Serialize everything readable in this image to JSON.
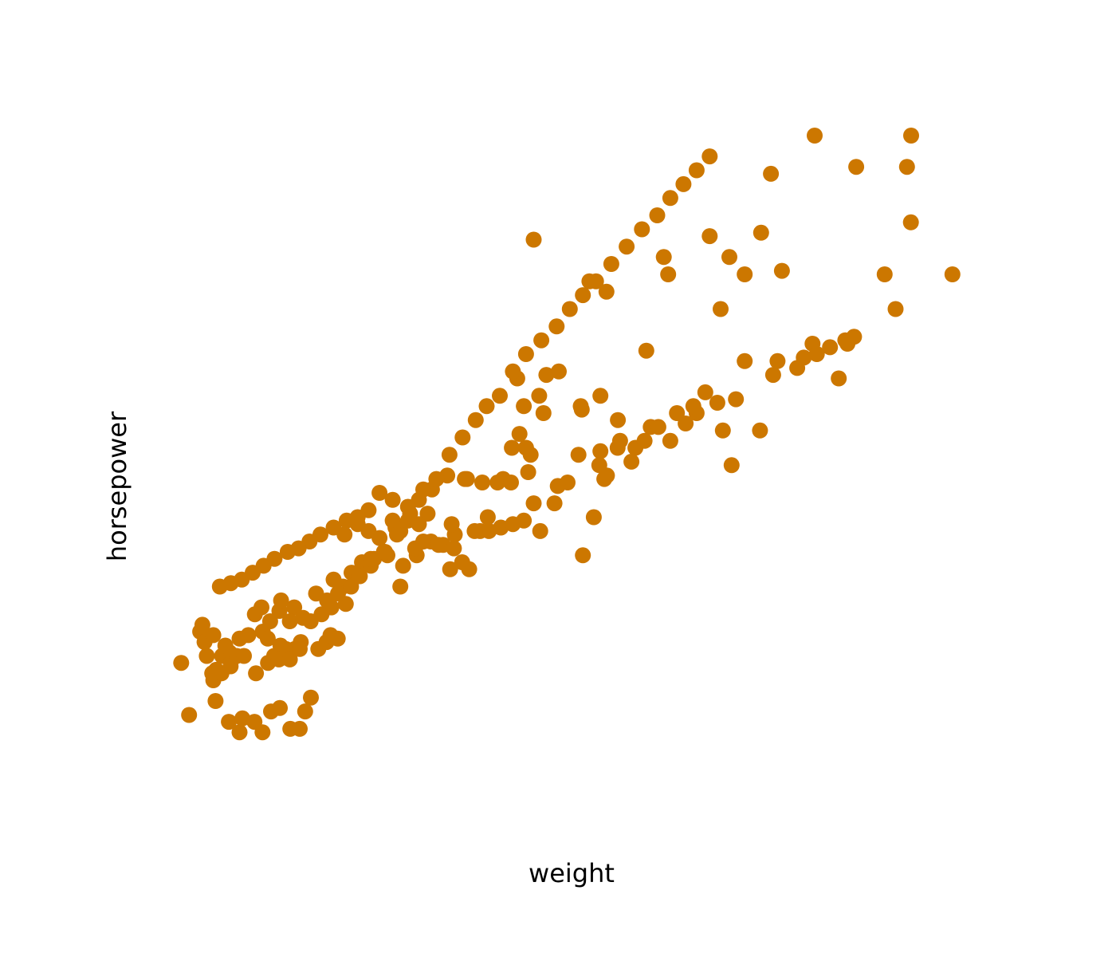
{
  "chart_data": {
    "type": "scatter",
    "title": "",
    "xlabel": "weight",
    "ylabel": "horsepower",
    "xlim": [
      1550,
      5250
    ],
    "ylim": [
      40,
      240
    ],
    "grid": false,
    "marker_color": "#cc7700",
    "points": [
      [
        1613,
        88
      ],
      [
        1649,
        73
      ],
      [
        1755,
        85
      ],
      [
        1760,
        83
      ],
      [
        1797,
        85
      ],
      [
        1773,
        86
      ],
      [
        1834,
        91
      ],
      [
        1800,
        90
      ],
      [
        1845,
        89
      ],
      [
        1850,
        90
      ],
      [
        1839,
        87
      ],
      [
        1867,
        90
      ],
      [
        1770,
        77
      ],
      [
        1831,
        71
      ],
      [
        1880,
        68
      ],
      [
        1893,
        72
      ],
      [
        1985,
        68
      ],
      [
        1948,
        71
      ],
      [
        2024,
        74
      ],
      [
        2064,
        75
      ],
      [
        2112,
        69
      ],
      [
        2155,
        69
      ],
      [
        2206,
        78
      ],
      [
        2180,
        74
      ],
      [
        1986,
        97
      ],
      [
        2009,
        95
      ],
      [
        2038,
        90
      ],
      [
        2067,
        93
      ],
      [
        2091,
        92
      ],
      [
        2133,
        92
      ],
      [
        2160,
        94
      ],
      [
        2062,
        103
      ],
      [
        2130,
        104
      ],
      [
        2240,
        92
      ],
      [
        2278,
        94
      ],
      [
        2296,
        96
      ],
      [
        2300,
        104
      ],
      [
        2329,
        95
      ],
      [
        2366,
        105
      ],
      [
        1900,
        90
      ],
      [
        1955,
        85
      ],
      [
        2010,
        88
      ],
      [
        2060,
        89
      ],
      [
        2110,
        89
      ],
      [
        2155,
        92
      ],
      [
        2205,
        100
      ],
      [
        2255,
        102
      ],
      [
        2310,
        112
      ],
      [
        2353,
        110
      ],
      [
        2392,
        114
      ],
      [
        2440,
        117
      ],
      [
        2495,
        118
      ],
      [
        2556,
        119
      ],
      [
        2593,
        127
      ],
      [
        2628,
        116
      ],
      [
        2690,
        119
      ],
      [
        2740,
        131
      ],
      [
        2843,
        115
      ],
      [
        2864,
        125
      ],
      [
        2920,
        141
      ],
      [
        2360,
        125
      ],
      [
        2420,
        128
      ],
      [
        2470,
        126
      ],
      [
        2520,
        124
      ],
      [
        2580,
        129
      ],
      [
        2615,
        126
      ],
      [
        2650,
        129
      ],
      [
        2700,
        128
      ],
      [
        2755,
        123
      ],
      [
        2811,
        122
      ],
      [
        2850,
        128
      ],
      [
        2898,
        117
      ],
      [
        2930,
        115
      ],
      [
        2980,
        126
      ],
      [
        3020,
        126
      ],
      [
        3075,
        127
      ],
      [
        3130,
        128
      ],
      [
        3180,
        129
      ],
      [
        3225,
        134
      ],
      [
        3255,
        126
      ],
      [
        3320,
        134
      ],
      [
        3380,
        140
      ],
      [
        3450,
        119
      ],
      [
        3500,
        130
      ],
      [
        3548,
        141
      ],
      [
        3200,
        143
      ],
      [
        3160,
        154
      ],
      [
        3180,
        162
      ],
      [
        3250,
        165
      ],
      [
        3150,
        170
      ],
      [
        3283,
        171
      ],
      [
        3445,
        161
      ],
      [
        3530,
        165
      ],
      [
        3620,
        152
      ],
      [
        3760,
        156
      ],
      [
        3850,
        152
      ],
      [
        3920,
        157
      ],
      [
        3970,
        160
      ],
      [
        4090,
        155
      ],
      [
        4150,
        164
      ],
      [
        4320,
        171
      ],
      [
        4430,
        173
      ],
      [
        4500,
        180
      ],
      [
        4690,
        182
      ],
      [
        4880,
        190
      ],
      [
        3225,
        210
      ],
      [
        3480,
        198
      ],
      [
        3558,
        195
      ],
      [
        3840,
        200
      ],
      [
        4030,
        211
      ],
      [
        4120,
        205
      ],
      [
        4360,
        201
      ],
      [
        4700,
        231
      ],
      [
        4951,
        240
      ],
      [
        4932,
        231
      ],
      [
        5140,
        200
      ],
      [
        4510,
        240
      ],
      [
        3690,
        150
      ],
      [
        3560,
        142
      ],
      [
        4130,
        145
      ],
      [
        4260,
        155
      ],
      [
        4620,
        170
      ],
      [
        4660,
        180
      ],
      [
        4830,
        200
      ],
      [
        4950,
        215
      ],
      [
        4310,
        229
      ],
      [
        4265,
        212
      ],
      [
        4190,
        200
      ],
      [
        4080,
        190
      ],
      [
        3820,
        205
      ],
      [
        3740,
        178
      ],
      [
        3610,
        158
      ],
      [
        3530,
        149
      ],
      [
        3440,
        162
      ],
      [
        3340,
        172
      ],
      [
        3270,
        160
      ],
      [
        3190,
        150
      ],
      [
        3125,
        150
      ],
      [
        3060,
        140
      ],
      [
        2990,
        140
      ],
      [
        2910,
        141
      ],
      [
        2830,
        142
      ],
      [
        2760,
        138
      ],
      [
        2700,
        135
      ],
      [
        2650,
        133
      ],
      [
        2580,
        135
      ],
      [
        2520,
        137
      ],
      [
        2470,
        132
      ],
      [
        2420,
        130
      ],
      [
        2370,
        129
      ],
      [
        2310,
        127
      ],
      [
        2250,
        125
      ],
      [
        2200,
        123
      ],
      [
        2150,
        121
      ],
      [
        2100,
        120
      ],
      [
        2040,
        118
      ],
      [
        1990,
        116
      ],
      [
        1940,
        114
      ],
      [
        1890,
        112
      ],
      [
        1840,
        111
      ],
      [
        1790,
        110
      ],
      [
        1710,
        99
      ],
      [
        1700,
        97
      ],
      [
        1730,
        90
      ],
      [
        1720,
        94
      ],
      [
        1760,
        96
      ],
      [
        1815,
        93
      ],
      [
        1880,
        95
      ],
      [
        1920,
        96
      ],
      [
        1950,
        102
      ],
      [
        1980,
        104
      ],
      [
        2020,
        100
      ],
      [
        2070,
        106
      ],
      [
        2110,
        100
      ],
      [
        2170,
        101
      ],
      [
        2230,
        108
      ],
      [
        2280,
        106
      ],
      [
        2330,
        108
      ],
      [
        2390,
        110
      ],
      [
        2430,
        113
      ],
      [
        2480,
        116
      ],
      [
        2540,
        120
      ],
      [
        2600,
        125
      ],
      [
        2660,
        131
      ],
      [
        2720,
        138
      ],
      [
        2780,
        141
      ],
      [
        2840,
        148
      ],
      [
        2900,
        153
      ],
      [
        2960,
        158
      ],
      [
        3010,
        162
      ],
      [
        3070,
        165
      ],
      [
        3130,
        172
      ],
      [
        3190,
        177
      ],
      [
        3260,
        181
      ],
      [
        3330,
        185
      ],
      [
        3390,
        190
      ],
      [
        3450,
        194
      ],
      [
        3510,
        198
      ],
      [
        3580,
        203
      ],
      [
        3650,
        208
      ],
      [
        3720,
        213
      ],
      [
        3790,
        217
      ],
      [
        3850,
        222
      ],
      [
        3910,
        226
      ],
      [
        3970,
        230
      ],
      [
        4030,
        234
      ],
      [
        2480,
        118
      ],
      [
        2545,
        120
      ],
      [
        2615,
        110
      ],
      [
        2683,
        121
      ],
      [
        2720,
        123
      ],
      [
        2790,
        122
      ],
      [
        2860,
        121
      ],
      [
        2955,
        126
      ],
      [
        3015,
        130
      ],
      [
        3085,
        141
      ],
      [
        3121,
        140
      ],
      [
        3211,
        148
      ],
      [
        3335,
        139
      ],
      [
        3430,
        148
      ],
      [
        3525,
        145
      ],
      [
        3609,
        150
      ],
      [
        3672,
        146
      ],
      [
        3732,
        152
      ],
      [
        3795,
        156
      ],
      [
        3880,
        160
      ],
      [
        3955,
        162
      ],
      [
        4010,
        166
      ],
      [
        4065,
        163
      ],
      [
        4190,
        175
      ],
      [
        4340,
        175
      ],
      [
        4460,
        176
      ],
      [
        4520,
        177
      ],
      [
        4580,
        179
      ],
      [
        4650,
        181
      ]
    ]
  }
}
